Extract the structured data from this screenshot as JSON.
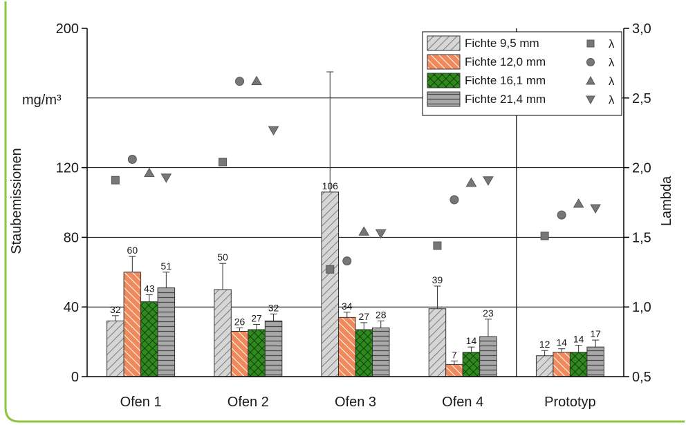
{
  "colors": {
    "frame_green": "#8cc63f"
  },
  "chart_data": {
    "type": "bar",
    "categories": [
      "Ofen 1",
      "Ofen 2",
      "Ofen 3",
      "Ofen 4",
      "Prototyp"
    ],
    "ylabel": "Staubemissionen",
    "yunit": "mg/m³",
    "y2label": "Lambda",
    "ylim": [
      0,
      200
    ],
    "y2lim": [
      0.5,
      3.0
    ],
    "yticks": [
      "0",
      "40",
      "80",
      "120",
      "200"
    ],
    "y2ticks": [
      "0,5",
      "1,0",
      "1,5",
      "2,0",
      "2,5",
      "3,0"
    ],
    "grid": true,
    "legend_position": "top-right",
    "lambda_label": "λ",
    "series": [
      {
        "name": "Fichte 9,5 mm",
        "values": [
          32,
          50,
          106,
          39,
          12
        ],
        "errors": [
          3,
          15,
          69,
          13,
          3
        ],
        "value_labels": [
          "32",
          "50",
          "106",
          "39",
          "12"
        ],
        "color": "#d4d4d4",
        "hatch": "diagonal",
        "lambda_marker": "square",
        "lambda": [
          1.91,
          2.04,
          1.27,
          1.44,
          1.51
        ]
      },
      {
        "name": "Fichte 12,0 mm",
        "values": [
          60,
          26,
          34,
          7,
          14
        ],
        "errors": [
          9,
          2,
          3,
          2,
          2
        ],
        "value_labels": [
          "60",
          "26",
          "34",
          "7",
          "14"
        ],
        "color": "#f08a5d",
        "hatch": "anti-diagonal",
        "lambda_marker": "circle",
        "lambda": [
          2.06,
          2.62,
          1.33,
          1.77,
          1.66
        ]
      },
      {
        "name": "Fichte 16,1 mm",
        "values": [
          43,
          27,
          27,
          14,
          14
        ],
        "errors": [
          4,
          3,
          4,
          3,
          4
        ],
        "value_labels": [
          "43",
          "27",
          "27",
          "14",
          "14"
        ],
        "color": "#2f8a1e",
        "hatch": "crosshatch",
        "lambda_marker": "triangle-up",
        "lambda": [
          1.96,
          2.62,
          1.54,
          1.89,
          1.74
        ]
      },
      {
        "name": "Fichte 21,4 mm",
        "values": [
          51,
          32,
          28,
          23,
          17
        ],
        "errors": [
          9,
          4,
          4,
          10,
          4
        ],
        "value_labels": [
          "51",
          "32",
          "28",
          "23",
          "17"
        ],
        "color": "#a8a8a8",
        "hatch": "horizontal",
        "lambda_marker": "triangle-down",
        "lambda": [
          1.93,
          2.27,
          1.53,
          1.91,
          1.71
        ]
      }
    ]
  }
}
